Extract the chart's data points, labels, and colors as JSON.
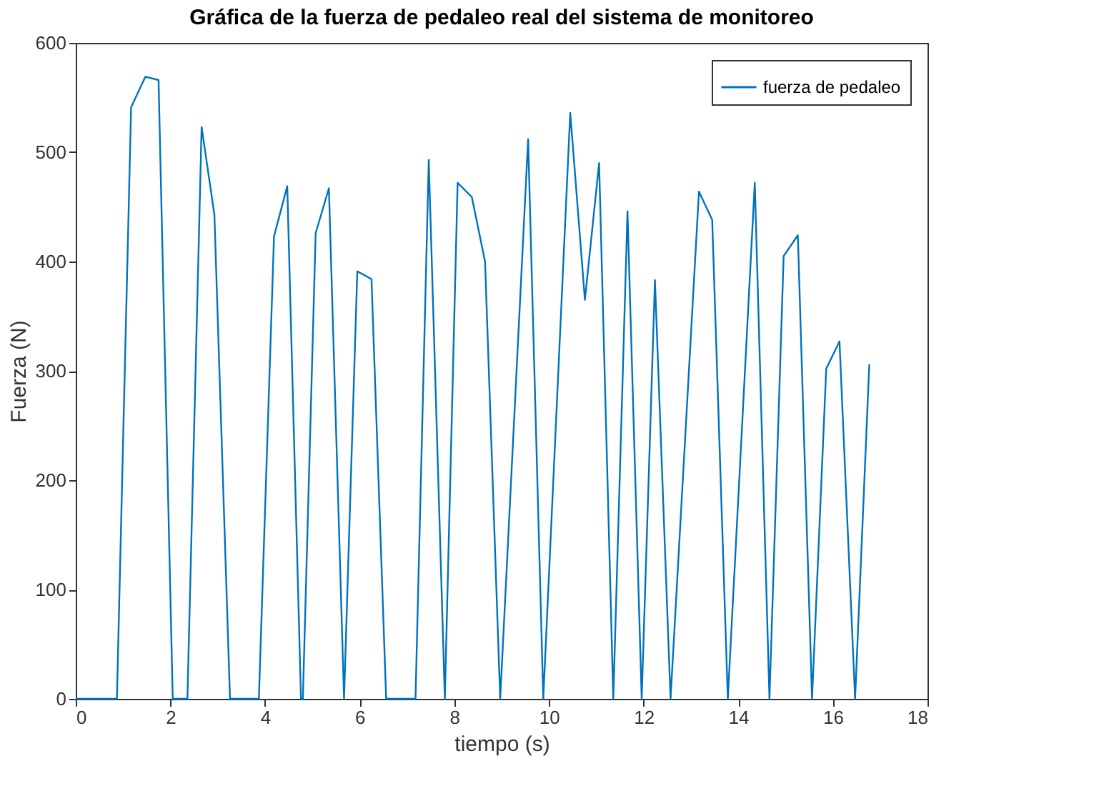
{
  "chart_data": {
    "type": "line",
    "title": "Gráfica de la fuerza de pedaleo real del sistema de monitoreo",
    "xlabel": "tiempo (s)",
    "ylabel": "Fuerza (N)",
    "xlim": [
      0,
      18
    ],
    "xticks": [
      0,
      2,
      4,
      6,
      8,
      10,
      12,
      14,
      16,
      18
    ],
    "ylim": [
      0,
      600
    ],
    "yticks": [
      0,
      100,
      200,
      300,
      400,
      500,
      600
    ],
    "grid": false,
    "legend": "top right",
    "series": [
      {
        "name": "fuerza de pedaleo",
        "color": "#0072bd",
        "x": [
          0,
          0.87,
          1.17,
          1.47,
          1.75,
          2.05,
          2.36,
          2.66,
          2.93,
          3.26,
          3.87,
          4.19,
          4.47,
          4.76,
          4.8,
          5.07,
          5.35,
          5.67,
          5.95,
          6.25,
          6.56,
          7.18,
          7.46,
          7.8,
          8.07,
          8.37,
          8.65,
          8.97,
          9.56,
          9.88,
          10.45,
          10.76,
          11.06,
          11.36,
          11.66,
          11.96,
          12.24,
          12.57,
          13.17,
          13.45,
          13.78,
          14.35,
          14.66,
          14.96,
          15.26,
          15.56,
          15.86,
          16.14,
          16.47,
          16.77
        ],
        "values": [
          0,
          0,
          541,
          569,
          566,
          0,
          0,
          523,
          443,
          0,
          0,
          423,
          469,
          0,
          0,
          426,
          467,
          0,
          391,
          384,
          0,
          0,
          493,
          0,
          472,
          459,
          400,
          0,
          512,
          0,
          536,
          365,
          490,
          0,
          446,
          0,
          383,
          0,
          464,
          438,
          0,
          472,
          0,
          405,
          424,
          0,
          302,
          327,
          0,
          306
        ]
      }
    ]
  }
}
